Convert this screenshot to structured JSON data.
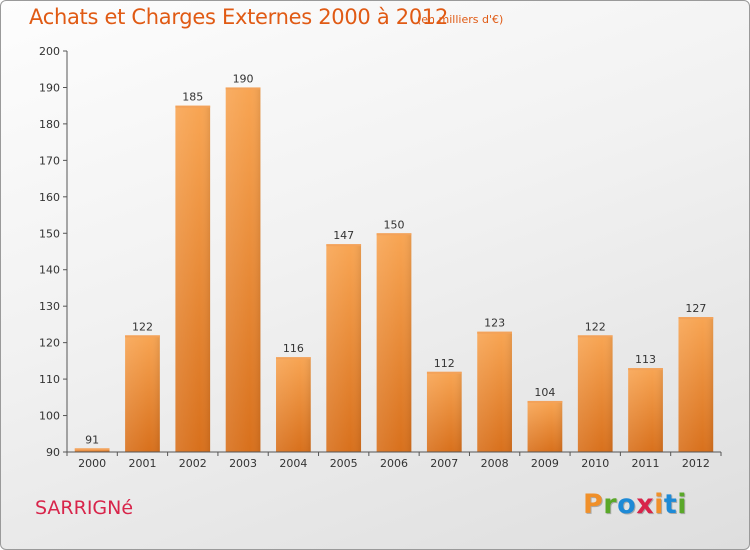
{
  "header": {
    "title": "Achats et Charges Externes 2000 à 2012",
    "unit": "(en milliers d'€)"
  },
  "footer": {
    "location": "SARRIGNé",
    "logo_text": "Proxiti",
    "logo_colors": [
      "#f0902a",
      "#5aa829",
      "#1e8ad6",
      "#d8244a",
      "#f0902a",
      "#1e8ad6",
      "#5aa829"
    ]
  },
  "chart_data": {
    "type": "bar",
    "title": "Achats et Charges Externes 2000 à 2012",
    "subtitle": "(en milliers d'€)",
    "xlabel": "",
    "ylabel": "",
    "categories": [
      "2000",
      "2001",
      "2002",
      "2003",
      "2004",
      "2005",
      "2006",
      "2007",
      "2008",
      "2009",
      "2010",
      "2011",
      "2012"
    ],
    "values": [
      91,
      122,
      185,
      190,
      116,
      147,
      150,
      112,
      123,
      104,
      122,
      113,
      127
    ],
    "ylim": [
      90,
      200
    ],
    "yticks": [
      90,
      100,
      110,
      120,
      130,
      140,
      150,
      160,
      170,
      180,
      190,
      200
    ],
    "grid": false,
    "data_labels": true,
    "bar_color": "#f08a2c"
  }
}
